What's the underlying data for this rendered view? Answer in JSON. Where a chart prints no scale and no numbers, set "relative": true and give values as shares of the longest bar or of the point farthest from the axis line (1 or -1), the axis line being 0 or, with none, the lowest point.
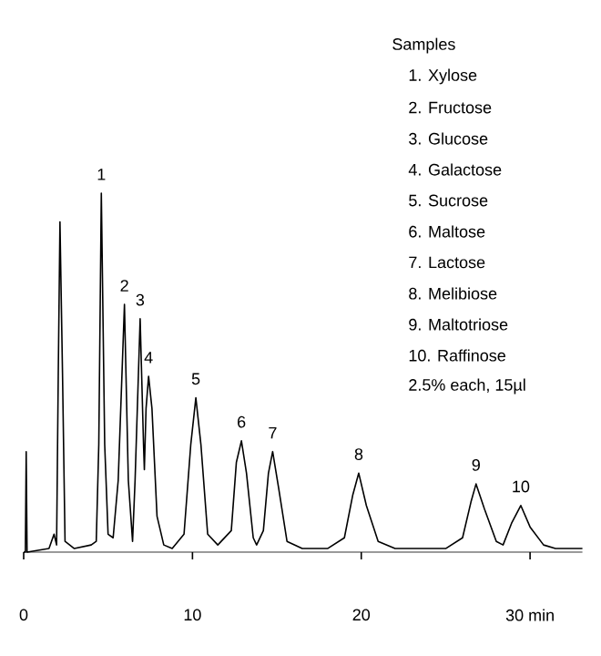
{
  "chart_data": {
    "type": "line",
    "relative": true,
    "color": "#000000",
    "marker": "none",
    "line_style": "solid",
    "x": [
      0,
      0.1,
      0.15,
      0.2,
      1.5,
      1.8,
      1.95,
      2.05,
      2.15,
      2.3,
      2.45,
      3,
      4.0,
      4.3,
      4.45,
      4.6,
      4.8,
      5.0,
      5.3,
      5.6,
      5.97,
      6.2,
      6.45,
      6.6,
      6.9,
      7.1,
      7.15,
      7.25,
      7.4,
      7.6,
      7.9,
      8.3,
      8.8,
      9.5,
      9.9,
      10.2,
      10.5,
      10.9,
      11.5,
      12.3,
      12.6,
      12.9,
      13.2,
      13.6,
      13.8,
      14.2,
      14.5,
      14.75,
      15.1,
      15.6,
      16.5,
      18,
      19.0,
      19.5,
      19.85,
      20.3,
      21,
      22,
      25,
      26.0,
      26.5,
      26.8,
      27.3,
      28.0,
      28.4,
      28.9,
      29.45,
      30.0,
      30.8,
      31.5,
      33.1
    ],
    "values": [
      0,
      0,
      0.28,
      0,
      0.01,
      0.05,
      0.02,
      0.5,
      0.92,
      0.5,
      0.03,
      0.01,
      0.02,
      0.03,
      0.3,
      1,
      0.3,
      0.05,
      0.04,
      0.2,
      0.69,
      0.2,
      0.03,
      0.2,
      0.65,
      0.3,
      0.23,
      0.4,
      0.49,
      0.4,
      0.1,
      0.02,
      0.01,
      0.05,
      0.3,
      0.43,
      0.3,
      0.05,
      0.02,
      0.06,
      0.25,
      0.31,
      0.22,
      0.04,
      0.02,
      0.06,
      0.22,
      0.28,
      0.18,
      0.03,
      0.01,
      0.01,
      0.04,
      0.16,
      0.22,
      0.13,
      0.03,
      0.01,
      0.01,
      0.04,
      0.14,
      0.19,
      0.12,
      0.03,
      0.02,
      0.08,
      0.13,
      0.07,
      0.02,
      0.01,
      0.01
    ],
    "xlim": [
      0,
      33.1
    ],
    "xticks": [
      0,
      10,
      20,
      {
        "value": 30,
        "label": "30 min"
      }
    ],
    "annotations": [
      {
        "text": "1",
        "x": 4.6,
        "y": 1
      },
      {
        "text": "2",
        "x": 5.97,
        "y": 0.69
      },
      {
        "text": "3",
        "x": 6.9,
        "y": 0.65
      },
      {
        "text": "4",
        "x": 7.4,
        "y": 0.49
      },
      {
        "text": "5",
        "x": 10.2,
        "y": 0.43
      },
      {
        "text": "6",
        "x": 12.9,
        "y": 0.31
      },
      {
        "text": "7",
        "x": 14.75,
        "y": 0.28
      },
      {
        "text": "8",
        "x": 19.85,
        "y": 0.22
      },
      {
        "text": "9",
        "x": 26.8,
        "y": 0.19
      },
      {
        "text": "10",
        "x": 29.45,
        "y": 0.13
      },
      "Samples",
      "1. Xylose",
      "2. Fructose",
      "3. Glucose",
      "4. Galactose",
      "5. Sucrose",
      "6. Maltose",
      "7. Lactose",
      "8. Melibiose",
      "9. Maltotriose",
      "10. Raffinose",
      "2.5% each, 15µl"
    ]
  }
}
